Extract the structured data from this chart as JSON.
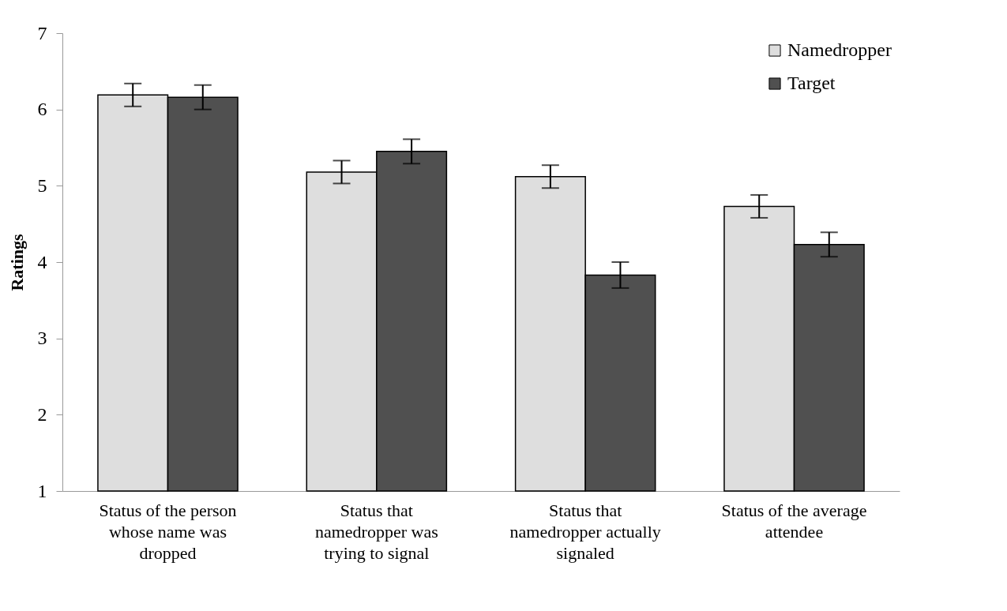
{
  "chart_data": {
    "type": "bar",
    "ylabel": "Ratings",
    "categories": [
      "Status of the person whose name was dropped",
      "Status that namedropper was trying to signal",
      "Status that namedropper actually signaled",
      "Status of the average attendee"
    ],
    "series": [
      {
        "name": "Namedropper",
        "color": "#dedede",
        "values": [
          6.19,
          5.18,
          5.12,
          4.73
        ],
        "errors": [
          0.15,
          0.15,
          0.15,
          0.15
        ]
      },
      {
        "name": "Target",
        "color": "#505050",
        "values": [
          6.16,
          5.45,
          3.83,
          4.23
        ],
        "errors": [
          0.16,
          0.16,
          0.17,
          0.16
        ]
      }
    ],
    "ylim": [
      1,
      7
    ],
    "yticks": [
      1,
      2,
      3,
      4,
      5,
      6,
      7
    ],
    "grid": false,
    "legend": "top right"
  }
}
